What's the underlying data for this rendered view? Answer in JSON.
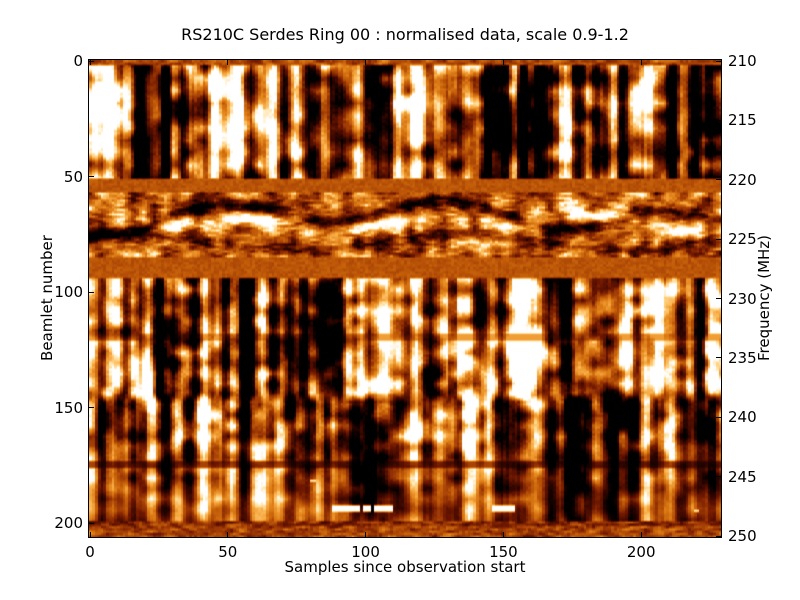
{
  "figure": {
    "background": "#ffffff",
    "frame_color": "#000000",
    "text_color": "#000000"
  },
  "chart_data": {
    "type": "heatmap",
    "title": "RS210C Serdes Ring 00 : normalised data, scale 0.9-1.2",
    "xlabel": "Samples since observation start",
    "ylabel": "Beamlet number",
    "ylabel_right": "Frequency (MHz)",
    "scale_annotation": {
      "min": 0.9,
      "max": 1.2
    },
    "x_axis": {
      "range": [
        0,
        229
      ],
      "ticks": [
        0,
        50,
        100,
        150,
        200
      ]
    },
    "y_axis_left": {
      "range": [
        0,
        206
      ],
      "ticks": [
        0,
        50,
        100,
        150,
        200
      ],
      "inverted": true
    },
    "y_axis_right": {
      "range": [
        210,
        250
      ],
      "ticks": [
        210,
        215,
        220,
        225,
        230,
        235,
        240,
        245,
        250
      ]
    },
    "legend": "none",
    "grid": false,
    "color_scale": {
      "style": "hot-black-red-orange-yellow-white",
      "stops": [
        [
          0.0,
          "#000000"
        ],
        [
          0.16,
          "#330600"
        ],
        [
          0.33,
          "#6e1700"
        ],
        [
          0.47,
          "#9e3a05"
        ],
        [
          0.58,
          "#c05a08"
        ],
        [
          0.7,
          "#e08018"
        ],
        [
          0.8,
          "#f4a43c"
        ],
        [
          0.88,
          "#ffc870"
        ],
        [
          0.94,
          "#ffe6b0"
        ],
        [
          1.0,
          "#ffffff"
        ]
      ]
    },
    "bands": [
      {
        "name": "top-edge-mottle",
        "beamlets": [
          0,
          2
        ],
        "texture": "flat-mottled-orange"
      },
      {
        "name": "lane-0-streaky",
        "beamlets": [
          2,
          51
        ],
        "freq_mhz": [
          210.2,
          219.7
        ],
        "texture": "high-contrast-vertical-streaks"
      },
      {
        "name": "flat-band-1",
        "beamlets": [
          51,
          57
        ],
        "freq_mhz": [
          219.7,
          221.1
        ],
        "texture": "flat-brown",
        "value": 0.56
      },
      {
        "name": "speckle-band",
        "beamlets": [
          57,
          85
        ],
        "freq_mhz": [
          221.1,
          226.5
        ],
        "texture": "horizontal-speckle-dark-wisps-bright-blobs"
      },
      {
        "name": "flat-band-2",
        "beamlets": [
          85,
          94
        ],
        "freq_mhz": [
          226.5,
          228.2
        ],
        "texture": "flat-brown",
        "value": 0.56
      },
      {
        "name": "lower-streaky",
        "beamlets": [
          94,
          199
        ],
        "freq_mhz": [
          228.2,
          248.7
        ],
        "texture": "vertical-streaks-softening-to-orange-below-150"
      },
      {
        "name": "bottom-mottle",
        "beamlets": [
          199,
          206
        ],
        "freq_mhz": [
          248.7,
          250.0
        ],
        "texture": "dark-mottled-orange-rows"
      }
    ],
    "features": [
      {
        "type": "dark-row",
        "beamlet": 174,
        "strength": 0.5
      },
      {
        "type": "faint-dark-row",
        "beamlet": 119,
        "strength": 0.78
      },
      {
        "type": "white-dashes",
        "beamlet": 193,
        "samples": [
          [
            88,
            97
          ],
          [
            99,
            101
          ],
          [
            103,
            109
          ],
          [
            146,
            153
          ]
        ]
      },
      {
        "type": "white-speck",
        "sample": 21,
        "beamlet": 180
      },
      {
        "type": "white-speck",
        "sample": 80,
        "beamlet": 181
      },
      {
        "type": "white-speck",
        "sample": 219,
        "beamlet": 194
      }
    ],
    "render": {
      "seed": 20131,
      "cells": {
        "samples": 229,
        "beamlets": 206
      },
      "blobs_a": [
        [
          8,
          18,
          0.55,
          5,
          12
        ],
        [
          60,
          24,
          0.75,
          6,
          14
        ],
        [
          118,
          20,
          0.5,
          4,
          10
        ],
        [
          172,
          28,
          0.6,
          6,
          13
        ],
        [
          203,
          12,
          0.45,
          4,
          9
        ],
        [
          33,
          30,
          -0.55,
          5,
          12
        ],
        [
          86,
          25,
          -0.5,
          5,
          12
        ],
        [
          150,
          28,
          -0.5,
          6,
          12
        ],
        [
          224,
          25,
          -0.45,
          4,
          10
        ]
      ],
      "blobs_d": [
        [
          42,
          120,
          0.6,
          5,
          16
        ],
        [
          128,
          116,
          0.55,
          6,
          14
        ],
        [
          163,
          126,
          0.5,
          5,
          13
        ],
        [
          196,
          117,
          0.55,
          6,
          15
        ],
        [
          115,
          162,
          0.45,
          5,
          12
        ],
        [
          58,
          186,
          0.4,
          5,
          10
        ],
        [
          19,
          140,
          0.4,
          4,
          12
        ],
        [
          103,
          150,
          0.45,
          4,
          12
        ],
        [
          83,
          112,
          -0.6,
          7,
          16
        ],
        [
          30,
          131,
          -0.45,
          5,
          12
        ],
        [
          140,
          106,
          -0.45,
          4,
          10
        ],
        [
          218,
          131,
          -0.45,
          5,
          12
        ]
      ],
      "speckle_blobs": [
        [
          30,
          70,
          0.9
        ],
        [
          60,
          68,
          1.2
        ],
        [
          98,
          71,
          1.0
        ],
        [
          152,
          70,
          0.8
        ],
        [
          188,
          67,
          1.1
        ],
        [
          214,
          73,
          0.7
        ]
      ]
    }
  }
}
